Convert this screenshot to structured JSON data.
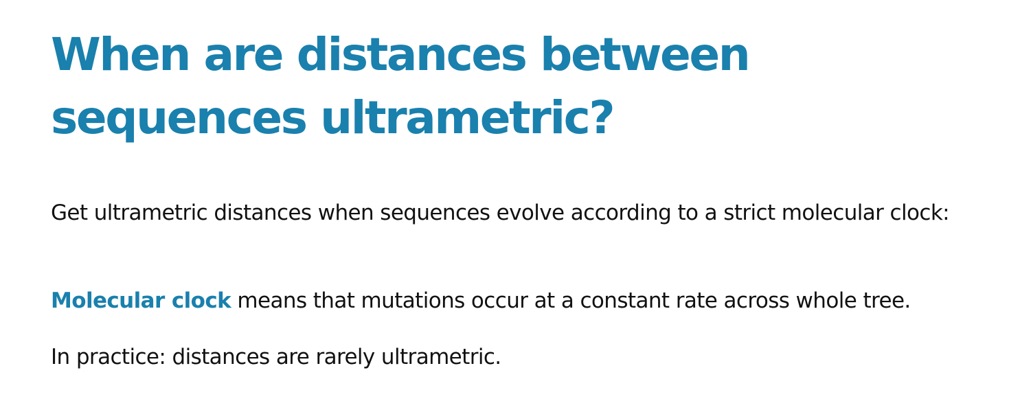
{
  "slide": {
    "title": "When are distances between sequences ultrametric?",
    "paragraph_1": "Get ultrametric distances when sequences evolve according to a strict molecular clock:",
    "paragraph_2": {
      "term": "Molecular clock",
      "rest": " means that mutations occur at a constant rate across whole tree."
    },
    "paragraph_3": "In practice: distances are rarely ultrametric."
  },
  "colors": {
    "accent": "#1a80ad",
    "text": "#111111",
    "background": "#ffffff"
  }
}
